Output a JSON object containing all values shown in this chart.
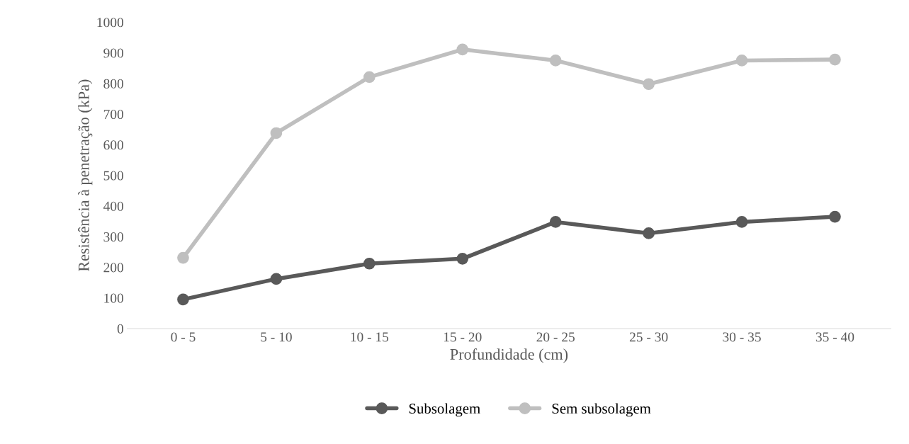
{
  "chart_data": {
    "type": "line",
    "xlabel": "Profundidade (cm)",
    "ylabel": "Resistência à penetração (kPa)",
    "categories": [
      "0 - 5",
      "5 - 10",
      "10 - 15",
      "15 - 20",
      "20 - 25",
      "25 - 30",
      "30 - 35",
      "35 - 40"
    ],
    "series": [
      {
        "name": "Subsolagem",
        "color": "#595959",
        "values": [
          95,
          162,
          212,
          228,
          348,
          311,
          348,
          365
        ]
      },
      {
        "name": "Sem subsolagem",
        "color": "#bfbfbf",
        "values": [
          231,
          638,
          821,
          911,
          875,
          798,
          875,
          878
        ]
      }
    ],
    "ylim": [
      0,
      1000
    ],
    "yticks": [
      0,
      100,
      200,
      300,
      400,
      500,
      600,
      700,
      800,
      900,
      1000
    ],
    "grid": false,
    "legend": "bottom",
    "marker": "circle",
    "line_style": "solid"
  }
}
